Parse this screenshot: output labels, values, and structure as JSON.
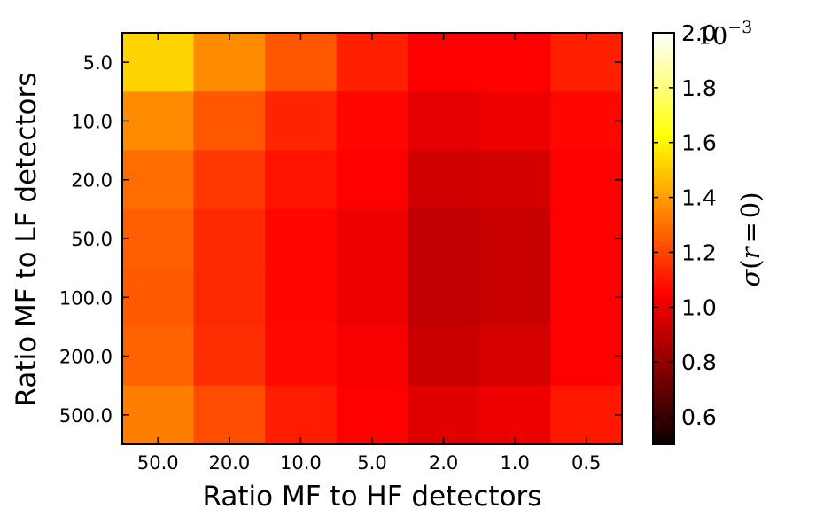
{
  "chart_data": {
    "type": "heatmap",
    "xlabel": "Ratio MF to HF detectors",
    "ylabel": "Ratio MF to LF detectors",
    "x_categories": [
      "50.0",
      "20.0",
      "10.0",
      "5.0",
      "2.0",
      "1.0",
      "0.5"
    ],
    "y_categories": [
      "5.0",
      "10.0",
      "20.0",
      "50.0",
      "100.0",
      "200.0",
      "500.0"
    ],
    "values": [
      [
        1.52,
        1.36,
        1.24,
        1.12,
        1.0,
        1.02,
        1.12
      ],
      [
        1.36,
        1.24,
        1.13,
        1.06,
        0.93,
        0.95,
        1.06
      ],
      [
        1.29,
        1.17,
        1.09,
        0.99,
        0.88,
        0.89,
        1.03
      ],
      [
        1.26,
        1.14,
        1.06,
        0.95,
        0.85,
        0.87,
        1.01
      ],
      [
        1.25,
        1.14,
        1.06,
        0.95,
        0.85,
        0.87,
        1.02
      ],
      [
        1.27,
        1.15,
        1.07,
        0.97,
        0.87,
        0.9,
        1.04
      ],
      [
        1.33,
        1.22,
        1.11,
        1.02,
        0.92,
        0.95,
        1.1
      ]
    ],
    "colormap": "hot",
    "vmin": 0.5,
    "vmax": 2.0,
    "colorbar": {
      "ticks": [
        "0.6",
        "0.8",
        "1.0",
        "1.2",
        "1.4",
        "1.6",
        "1.8",
        "2.0"
      ],
      "tick_values": [
        0.6,
        0.8,
        1.0,
        1.2,
        1.4,
        1.6,
        1.8,
        2.0
      ],
      "multiplier_base": "10",
      "multiplier_exponent": "−3",
      "label_func": "σ",
      "label_var": "r",
      "label_eq": "=",
      "label_zero": "0"
    }
  }
}
